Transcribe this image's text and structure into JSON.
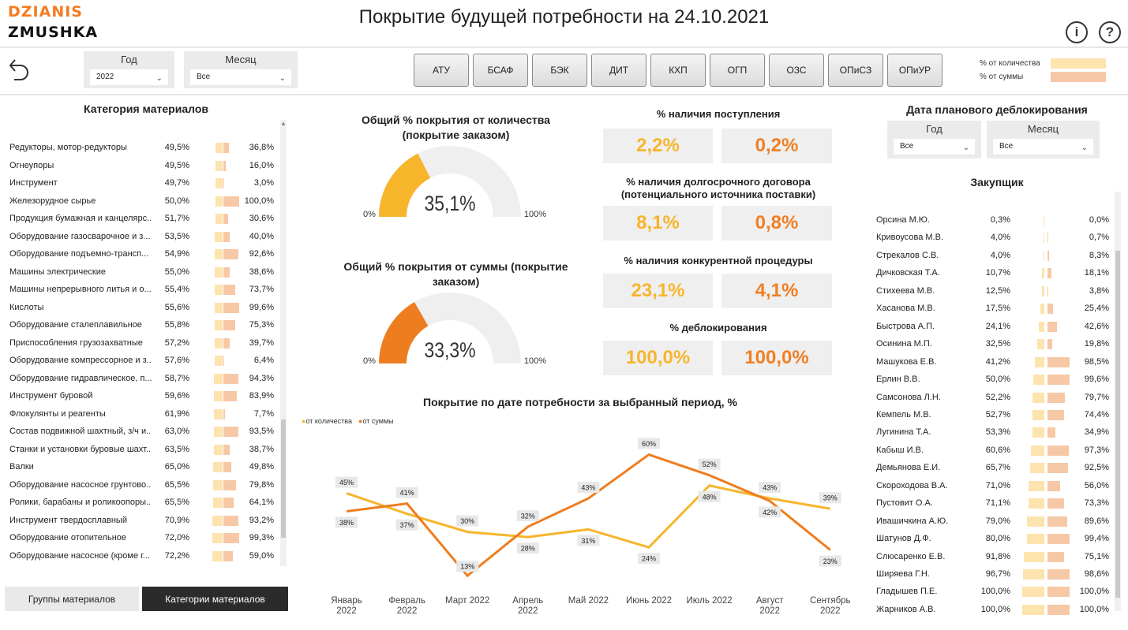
{
  "header": {
    "logo_top": "DZIANIS",
    "logo_bottom": "ZMUSHKA",
    "title": "Покрытие будущей потребности на  24.10.2021",
    "info_icon": "info-icon",
    "help_icon": "help-icon",
    "back_icon": "undo-arrow-icon"
  },
  "filters": {
    "year": {
      "label": "Год",
      "value": "2022"
    },
    "month": {
      "label": "Месяц",
      "value": "Все"
    },
    "buttons": [
      "АТУ",
      "БСАФ",
      "БЭК",
      "ДИТ",
      "КХП",
      "ОГП",
      "ОЗС",
      "ОПиСЗ",
      "ОПиУР"
    ],
    "legend": [
      {
        "label": "% от количества",
        "color": "#fde3ae"
      },
      {
        "label": "% от суммы",
        "color": "#f7c8a6"
      }
    ]
  },
  "categories": {
    "title": "Категория материалов",
    "rows": [
      {
        "name": "Редукторы, мотор-редукторы",
        "p1": "49,5%",
        "v1": 0.495,
        "p2": "36,8%",
        "v2": 0.368
      },
      {
        "name": "Огнеупоры",
        "p1": "49,5%",
        "v1": 0.495,
        "p2": "16,0%",
        "v2": 0.16
      },
      {
        "name": "Инструмент",
        "p1": "49,7%",
        "v1": 0.497,
        "p2": "3,0%",
        "v2": 0.03
      },
      {
        "name": "Железорудное сырье",
        "p1": "50,0%",
        "v1": 0.5,
        "p2": "100,0%",
        "v2": 1.0
      },
      {
        "name": "Продукция бумажная и канцелярс...",
        "p1": "51,7%",
        "v1": 0.517,
        "p2": "30,6%",
        "v2": 0.306
      },
      {
        "name": "Оборудование газосварочное и з...",
        "p1": "53,5%",
        "v1": 0.535,
        "p2": "40,0%",
        "v2": 0.4
      },
      {
        "name": "Оборудование подъемно-трансп...",
        "p1": "54,9%",
        "v1": 0.549,
        "p2": "92,6%",
        "v2": 0.926
      },
      {
        "name": "Машины электрические",
        "p1": "55,0%",
        "v1": 0.55,
        "p2": "38,6%",
        "v2": 0.386
      },
      {
        "name": "Машины непрерывного литья и о...",
        "p1": "55,4%",
        "v1": 0.554,
        "p2": "73,7%",
        "v2": 0.737
      },
      {
        "name": "Кислоты",
        "p1": "55,6%",
        "v1": 0.556,
        "p2": "99,6%",
        "v2": 0.996
      },
      {
        "name": "Оборудование сталеплавильное",
        "p1": "55,8%",
        "v1": 0.558,
        "p2": "75,3%",
        "v2": 0.753
      },
      {
        "name": "Приспособления грузозахватные",
        "p1": "57,2%",
        "v1": 0.572,
        "p2": "39,7%",
        "v2": 0.397
      },
      {
        "name": "Оборудование компрессорное и з...",
        "p1": "57,6%",
        "v1": 0.576,
        "p2": "6,4%",
        "v2": 0.064
      },
      {
        "name": "Оборудование гидравлическое, п...",
        "p1": "58,7%",
        "v1": 0.587,
        "p2": "94,3%",
        "v2": 0.943
      },
      {
        "name": "Инструмент буровой",
        "p1": "59,6%",
        "v1": 0.596,
        "p2": "83,9%",
        "v2": 0.839
      },
      {
        "name": "Флокулянты и реагенты",
        "p1": "61,9%",
        "v1": 0.619,
        "p2": "7,7%",
        "v2": 0.077
      },
      {
        "name": "Состав подвижной шахтный, з/ч и...",
        "p1": "63,0%",
        "v1": 0.63,
        "p2": "93,5%",
        "v2": 0.935
      },
      {
        "name": "Станки и установки буровые шахт...",
        "p1": "63,5%",
        "v1": 0.635,
        "p2": "38,7%",
        "v2": 0.387
      },
      {
        "name": "Валки",
        "p1": "65,0%",
        "v1": 0.65,
        "p2": "49,8%",
        "v2": 0.498
      },
      {
        "name": "Оборудование насосное грунтово...",
        "p1": "65,5%",
        "v1": 0.655,
        "p2": "79,8%",
        "v2": 0.798
      },
      {
        "name": "Ролики, барабаны и роликоопоры...",
        "p1": "65,5%",
        "v1": 0.655,
        "p2": "64,1%",
        "v2": 0.641
      },
      {
        "name": "Инструмент твердосплавный",
        "p1": "70,9%",
        "v1": 0.709,
        "p2": "93,2%",
        "v2": 0.932
      },
      {
        "name": "Оборудование отопительное",
        "p1": "72,0%",
        "v1": 0.72,
        "p2": "99,3%",
        "v2": 0.993
      },
      {
        "name": "Оборудование насосное (кроме г...",
        "p1": "72,2%",
        "v1": 0.722,
        "p2": "59,0%",
        "v2": 0.59
      }
    ],
    "tab_groups": "Группы материалов",
    "tab_categories": "Категории материалов"
  },
  "gauges": [
    {
      "title": "Общий % покрытия от количества (покрытие заказом)",
      "value_text": "35,1%",
      "value": 0.351,
      "min": "0%",
      "max": "100%",
      "color": "#f7b52c"
    },
    {
      "title": "Общий % покрытия от суммы (покрытие заказом)",
      "value_text": "33,3%",
      "value": 0.333,
      "min": "0%",
      "max": "100%",
      "color": "#ee7d1f"
    }
  ],
  "kpis": [
    {
      "title": "% наличия поступления",
      "qty": "2,2%",
      "sum": "0,2%"
    },
    {
      "title": "% наличия долгосрочного договора (потенциального источника поставки)",
      "qty": "8,1%",
      "sum": "0,8%"
    },
    {
      "title": "% наличия конкурентной процедуры",
      "qty": "23,1%",
      "sum": "4,1%"
    },
    {
      "title": "% деблокирования",
      "qty": "100,0%",
      "sum": "100,0%"
    }
  ],
  "chart_data": {
    "type": "line",
    "title": "Покрытие по дате потребности за выбранный период, %",
    "categories": [
      "Январь 2022",
      "Февраль 2022",
      "Март 2022",
      "Апрель 2022",
      "Май 2022",
      "Июнь 2022",
      "Июль 2022",
      "Август 2022",
      "Сентябрь 2022"
    ],
    "series": [
      {
        "name": "от количества",
        "color": "#f7b52c",
        "values": [
          45,
          37,
          30,
          28,
          31,
          24,
          48,
          43,
          39
        ]
      },
      {
        "name": "от суммы",
        "color": "#ee7d1f",
        "values": [
          38,
          41,
          13,
          32,
          43,
          60,
          52,
          42,
          23
        ]
      }
    ],
    "labels": [
      "45%",
      "37%",
      "30%",
      "28%",
      "31%",
      "24%",
      "48%",
      "43%",
      "39%",
      "38%",
      "41%",
      "13%",
      "32%",
      "43%",
      "60%",
      "52%",
      "42%",
      "23%"
    ],
    "legend_position": "top-left",
    "grid": false
  },
  "unblock": {
    "title": "Дата планового деблокирования",
    "year": {
      "label": "Год",
      "value": "Все"
    },
    "month": {
      "label": "Месяц",
      "value": "Все"
    }
  },
  "buyers": {
    "title": "Закупщик",
    "rows": [
      {
        "name": "Орсина М.Ю.",
        "p1": "0,3%",
        "v1": 0.003,
        "p2": "0,0%",
        "v2": 0.0
      },
      {
        "name": "Кривоусова М.В.",
        "p1": "4,0%",
        "v1": 0.04,
        "p2": "0,7%",
        "v2": 0.007
      },
      {
        "name": "Стрекалов С.В.",
        "p1": "4,0%",
        "v1": 0.04,
        "p2": "8,3%",
        "v2": 0.083
      },
      {
        "name": "Дичковская Т.А.",
        "p1": "10,7%",
        "v1": 0.107,
        "p2": "18,1%",
        "v2": 0.181
      },
      {
        "name": "Стихеева М.В.",
        "p1": "12,5%",
        "v1": 0.125,
        "p2": "3,8%",
        "v2": 0.038
      },
      {
        "name": "Хасанова М.В.",
        "p1": "17,5%",
        "v1": 0.175,
        "p2": "25,4%",
        "v2": 0.254
      },
      {
        "name": "Быстрова А.П.",
        "p1": "24,1%",
        "v1": 0.241,
        "p2": "42,6%",
        "v2": 0.426
      },
      {
        "name": "Осинина М.П.",
        "p1": "32,5%",
        "v1": 0.325,
        "p2": "19,8%",
        "v2": 0.198
      },
      {
        "name": "Машукова Е.В.",
        "p1": "41,2%",
        "v1": 0.412,
        "p2": "98,5%",
        "v2": 0.985
      },
      {
        "name": "Ерлин В.В.",
        "p1": "50,0%",
        "v1": 0.5,
        "p2": "99,6%",
        "v2": 0.996
      },
      {
        "name": "Самсонова Л.Н.",
        "p1": "52,2%",
        "v1": 0.522,
        "p2": "79,7%",
        "v2": 0.797
      },
      {
        "name": "Кемпель М.В.",
        "p1": "52,7%",
        "v1": 0.527,
        "p2": "74,4%",
        "v2": 0.744
      },
      {
        "name": "Лугинина Т.А.",
        "p1": "53,3%",
        "v1": 0.533,
        "p2": "34,9%",
        "v2": 0.349
      },
      {
        "name": "Кабыш И.В.",
        "p1": "60,6%",
        "v1": 0.606,
        "p2": "97,3%",
        "v2": 0.973
      },
      {
        "name": "Демьянова Е.И.",
        "p1": "65,7%",
        "v1": 0.657,
        "p2": "92,5%",
        "v2": 0.925
      },
      {
        "name": "Скороходова В.А.",
        "p1": "71,0%",
        "v1": 0.71,
        "p2": "56,0%",
        "v2": 0.56
      },
      {
        "name": "Пустовит О.А.",
        "p1": "71,1%",
        "v1": 0.711,
        "p2": "73,3%",
        "v2": 0.733
      },
      {
        "name": "Ивашичкина А.Ю.",
        "p1": "79,0%",
        "v1": 0.79,
        "p2": "89,6%",
        "v2": 0.896
      },
      {
        "name": "Шатунов Д.Ф.",
        "p1": "80,0%",
        "v1": 0.8,
        "p2": "99,4%",
        "v2": 0.994
      },
      {
        "name": "Слюсаренко Е.В.",
        "p1": "91,8%",
        "v1": 0.918,
        "p2": "75,1%",
        "v2": 0.751
      },
      {
        "name": "Ширяева Г.Н.",
        "p1": "96,7%",
        "v1": 0.967,
        "p2": "98,6%",
        "v2": 0.986
      },
      {
        "name": "Гладышев П.Е.",
        "p1": "100,0%",
        "v1": 1.0,
        "p2": "100,0%",
        "v2": 1.0
      },
      {
        "name": "Жарников А.В.",
        "p1": "100,0%",
        "v1": 1.0,
        "p2": "100,0%",
        "v2": 1.0
      }
    ]
  }
}
